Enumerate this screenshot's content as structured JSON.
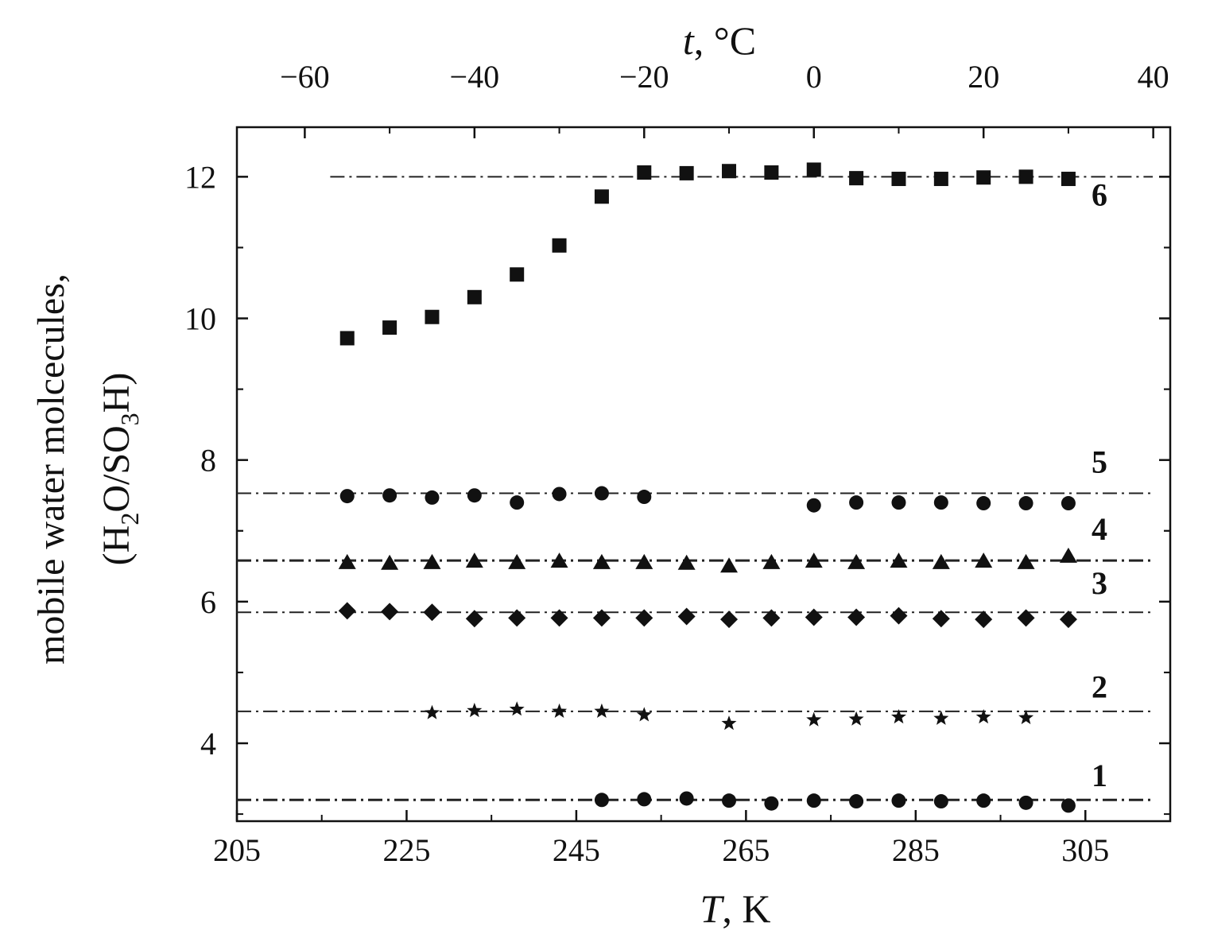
{
  "chart_data": {
    "type": "scatter",
    "xlabel": {
      "italic": "T",
      "rest": ", K"
    },
    "x2label": {
      "italic": "t",
      "rest": ", °C"
    },
    "ylabel": {
      "line1": "mobile water molcecules,",
      "line2": {
        "open": "(H",
        "sub1": "2",
        "mid": "O/SO",
        "sub2": "3",
        "close": "H)"
      }
    },
    "xlim": [
      205,
      315
    ],
    "ylim": [
      2.9,
      12.7
    ],
    "x2lim": [
      -68,
      42
    ],
    "xticks": [
      205,
      225,
      245,
      265,
      285,
      305
    ],
    "x2ticks": [
      -60,
      -40,
      -20,
      0,
      20,
      40
    ],
    "yticks": [
      4,
      6,
      8,
      10,
      12
    ],
    "series": [
      {
        "name": "1",
        "marker": "circle",
        "level": 3.2,
        "line_start": 205,
        "points": [
          [
            248,
            3.2
          ],
          [
            253,
            3.21
          ],
          [
            258,
            3.22
          ],
          [
            263,
            3.19
          ],
          [
            268,
            3.15
          ],
          [
            273,
            3.19
          ],
          [
            278,
            3.18
          ],
          [
            283,
            3.19
          ],
          [
            288,
            3.18
          ],
          [
            293,
            3.19
          ],
          [
            298,
            3.16
          ],
          [
            303,
            3.12
          ]
        ]
      },
      {
        "name": "2",
        "marker": "star",
        "level": 4.45,
        "line_start": 205,
        "points": [
          [
            228,
            4.43
          ],
          [
            233,
            4.46
          ],
          [
            238,
            4.48
          ],
          [
            243,
            4.45
          ],
          [
            248,
            4.45
          ],
          [
            253,
            4.4
          ],
          [
            263,
            4.28
          ],
          [
            273,
            4.33
          ],
          [
            278,
            4.34
          ],
          [
            283,
            4.37
          ],
          [
            288,
            4.35
          ],
          [
            293,
            4.37
          ],
          [
            298,
            4.36
          ]
        ]
      },
      {
        "name": "3",
        "marker": "diamond",
        "level": 5.85,
        "line_start": 205,
        "points": [
          [
            218,
            5.87
          ],
          [
            223,
            5.86
          ],
          [
            228,
            5.85
          ],
          [
            233,
            5.76
          ],
          [
            238,
            5.77
          ],
          [
            243,
            5.77
          ],
          [
            248,
            5.77
          ],
          [
            253,
            5.77
          ],
          [
            258,
            5.79
          ],
          [
            263,
            5.75
          ],
          [
            268,
            5.77
          ],
          [
            273,
            5.78
          ],
          [
            278,
            5.78
          ],
          [
            283,
            5.8
          ],
          [
            288,
            5.76
          ],
          [
            293,
            5.75
          ],
          [
            298,
            5.77
          ],
          [
            303,
            5.75
          ]
        ]
      },
      {
        "name": "4",
        "marker": "triangle",
        "level": 6.58,
        "line_start": 205,
        "points": [
          [
            218,
            6.55
          ],
          [
            223,
            6.54
          ],
          [
            228,
            6.55
          ],
          [
            233,
            6.57
          ],
          [
            238,
            6.55
          ],
          [
            243,
            6.57
          ],
          [
            248,
            6.55
          ],
          [
            253,
            6.55
          ],
          [
            258,
            6.54
          ],
          [
            263,
            6.5
          ],
          [
            268,
            6.55
          ],
          [
            273,
            6.57
          ],
          [
            278,
            6.55
          ],
          [
            283,
            6.57
          ],
          [
            288,
            6.55
          ],
          [
            293,
            6.57
          ],
          [
            298,
            6.55
          ],
          [
            303,
            6.64
          ]
        ]
      },
      {
        "name": "5",
        "marker": "circle",
        "level": 7.53,
        "line_start": 205,
        "points": [
          [
            218,
            7.49
          ],
          [
            223,
            7.5
          ],
          [
            228,
            7.47
          ],
          [
            233,
            7.5
          ],
          [
            238,
            7.4
          ],
          [
            243,
            7.52
          ],
          [
            248,
            7.53
          ],
          [
            253,
            7.48
          ],
          [
            273,
            7.36
          ],
          [
            278,
            7.4
          ],
          [
            283,
            7.4
          ],
          [
            288,
            7.4
          ],
          [
            293,
            7.39
          ],
          [
            298,
            7.39
          ],
          [
            303,
            7.39
          ]
        ]
      },
      {
        "name": "6",
        "marker": "square",
        "level": 12.0,
        "line_start": 216,
        "points": [
          [
            218,
            9.72
          ],
          [
            223,
            9.87
          ],
          [
            228,
            10.02
          ],
          [
            233,
            10.3
          ],
          [
            238,
            10.62
          ],
          [
            243,
            11.03
          ],
          [
            248,
            11.72
          ],
          [
            253,
            12.06
          ],
          [
            258,
            12.05
          ],
          [
            263,
            12.08
          ],
          [
            268,
            12.06
          ],
          [
            273,
            12.1
          ],
          [
            278,
            11.98
          ],
          [
            283,
            11.97
          ],
          [
            288,
            11.97
          ],
          [
            293,
            11.99
          ],
          [
            298,
            12.0
          ],
          [
            303,
            11.97
          ]
        ]
      }
    ],
    "series_label_levels": [
      3.55,
      4.8,
      6.27,
      7.03,
      7.98,
      11.75
    ]
  }
}
